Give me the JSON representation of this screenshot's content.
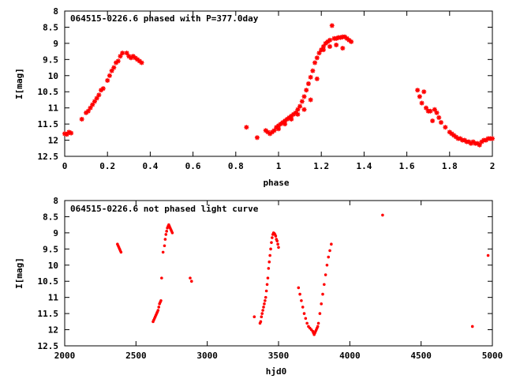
{
  "chart_data": [
    {
      "type": "scatter",
      "title": "064515-0226.6 phased with P=377.0day",
      "xlabel": "phase",
      "ylabel": "I[mag]",
      "xlim": [
        0,
        2
      ],
      "ylim": [
        12.5,
        8
      ],
      "y_inverted": true,
      "xticks": [
        "0",
        "0.2",
        "0.4",
        "0.6",
        "0.8",
        "1",
        "1.2",
        "1.4",
        "1.6",
        "1.8",
        "2"
      ],
      "yticks": [
        "8",
        "8.5",
        "9",
        "9.5",
        "10",
        "10.5",
        "11",
        "11.5",
        "12",
        "12.5"
      ],
      "marker_color": "#ff0000",
      "marker": "star",
      "grid": false,
      "series": [
        {
          "x": [
            0.0,
            0.01,
            0.02,
            0.03,
            0.08,
            0.1,
            0.11,
            0.12,
            0.13,
            0.14,
            0.15,
            0.16,
            0.17,
            0.18,
            0.2,
            0.21,
            0.22,
            0.23,
            0.24,
            0.25,
            0.26,
            0.27,
            0.29,
            0.3,
            0.31,
            0.32,
            0.33,
            0.34,
            0.35,
            0.36,
            0.85,
            0.9,
            0.94,
            0.95,
            0.96,
            0.97,
            0.98,
            0.99,
            1.0,
            1.01,
            1.02,
            1.03,
            1.04,
            1.05,
            1.06,
            1.07,
            1.08,
            1.09,
            1.1,
            1.11,
            1.12,
            1.13,
            1.14,
            1.15,
            1.16,
            1.17,
            1.18,
            1.19,
            1.2,
            1.21,
            1.22,
            1.23,
            1.24,
            1.25,
            1.26,
            1.27,
            1.28,
            1.29,
            1.3,
            1.31,
            1.32,
            1.33,
            1.34,
            1.0,
            1.03,
            1.06,
            1.09,
            1.12,
            1.15,
            1.18,
            1.21,
            1.24,
            1.27,
            1.3,
            1.65,
            1.66,
            1.67,
            1.68,
            1.69,
            1.7,
            1.71,
            1.72,
            1.73,
            1.74,
            1.75,
            1.76,
            1.78,
            1.8,
            1.81,
            1.82,
            1.83,
            1.84,
            1.85,
            1.86,
            1.87,
            1.88,
            1.89,
            1.9,
            1.91,
            1.92,
            1.93,
            1.94,
            1.95,
            1.96,
            1.97,
            1.98,
            1.99,
            2.0
          ],
          "y": [
            11.8,
            11.82,
            11.75,
            11.78,
            11.35,
            11.15,
            11.1,
            11.0,
            10.9,
            10.8,
            10.7,
            10.6,
            10.45,
            10.4,
            10.15,
            10.0,
            9.85,
            9.75,
            9.6,
            9.55,
            9.4,
            9.3,
            9.3,
            9.4,
            9.45,
            9.4,
            9.45,
            9.5,
            9.55,
            9.6,
            11.6,
            11.92,
            11.7,
            11.75,
            11.8,
            11.75,
            11.7,
            11.6,
            11.55,
            11.5,
            11.45,
            11.4,
            11.35,
            11.3,
            11.25,
            11.2,
            11.15,
            11.05,
            10.95,
            10.8,
            10.65,
            10.45,
            10.25,
            10.05,
            9.85,
            9.6,
            9.45,
            9.3,
            9.2,
            9.1,
            9.0,
            8.95,
            8.9,
            8.45,
            8.85,
            8.85,
            8.82,
            8.82,
            8.8,
            8.8,
            8.85,
            8.9,
            8.95,
            11.65,
            11.5,
            11.35,
            11.2,
            11.05,
            10.75,
            10.1,
            9.2,
            9.1,
            9.05,
            9.15,
            10.45,
            10.65,
            10.85,
            10.5,
            11.0,
            11.1,
            11.1,
            11.4,
            11.05,
            11.15,
            11.3,
            11.45,
            11.6,
            11.75,
            11.8,
            11.85,
            11.9,
            11.95,
            11.95,
            12.0,
            12.0,
            12.05,
            12.05,
            12.1,
            12.05,
            12.1,
            12.1,
            12.15,
            12.05,
            12.0,
            12.0,
            11.95,
            11.95,
            11.95
          ]
        }
      ]
    },
    {
      "type": "scatter",
      "title": "064515-0226.6 not phased light curve",
      "xlabel": "hjd0",
      "ylabel": "I[mag]",
      "xlim": [
        2000,
        5000
      ],
      "ylim": [
        12.5,
        8
      ],
      "y_inverted": true,
      "xticks": [
        "2000",
        "2500",
        "3000",
        "3500",
        "4000",
        "4500",
        "5000"
      ],
      "yticks": [
        "8",
        "8.5",
        "9",
        "9.5",
        "10",
        "10.5",
        "11",
        "11.5",
        "12",
        "12.5"
      ],
      "marker_color": "#ff0000",
      "marker": "dot",
      "grid": false,
      "series": [
        {
          "x": [
            2370,
            2375,
            2380,
            2385,
            2390,
            2395,
            2620,
            2625,
            2630,
            2635,
            2640,
            2645,
            2650,
            2655,
            2660,
            2665,
            2670,
            2675,
            2680,
            2690,
            2700,
            2705,
            2710,
            2715,
            2720,
            2725,
            2730,
            2735,
            2740,
            2745,
            2750,
            2755,
            2880,
            2890,
            3330,
            3370,
            3375,
            3380,
            3385,
            3390,
            3395,
            3400,
            3405,
            3410,
            3415,
            3420,
            3425,
            3430,
            3435,
            3440,
            3445,
            3450,
            3455,
            3460,
            3465,
            3470,
            3475,
            3480,
            3485,
            3490,
            3495,
            3500,
            3640,
            3650,
            3660,
            3670,
            3680,
            3690,
            3700,
            3710,
            3720,
            3730,
            3740,
            3745,
            3750,
            3755,
            3760,
            3765,
            3770,
            3775,
            3780,
            3790,
            3800,
            3810,
            3820,
            3830,
            3840,
            3850,
            3860,
            3870,
            4230,
            4860,
            4970
          ],
          "y": [
            9.35,
            9.4,
            9.45,
            9.5,
            9.55,
            9.6,
            11.75,
            11.7,
            11.65,
            11.6,
            11.55,
            11.5,
            11.45,
            11.4,
            11.3,
            11.2,
            11.15,
            11.1,
            10.4,
            9.6,
            9.4,
            9.2,
            9.05,
            8.95,
            8.85,
            8.8,
            8.75,
            8.8,
            8.85,
            8.9,
            8.95,
            9.0,
            10.4,
            10.5,
            11.6,
            11.8,
            11.75,
            11.6,
            11.5,
            11.4,
            11.3,
            11.2,
            11.1,
            11.0,
            10.8,
            10.6,
            10.4,
            10.1,
            9.9,
            9.7,
            9.5,
            9.3,
            9.15,
            9.05,
            9.0,
            9.02,
            9.05,
            9.1,
            9.2,
            9.25,
            9.35,
            9.45,
            10.7,
            10.9,
            11.1,
            11.3,
            11.5,
            11.65,
            11.8,
            11.9,
            11.95,
            12.0,
            12.05,
            12.1,
            12.15,
            12.1,
            12.05,
            12.0,
            11.95,
            11.9,
            11.8,
            11.5,
            11.2,
            10.9,
            10.6,
            10.3,
            10.0,
            9.75,
            9.55,
            9.35,
            8.45,
            11.9,
            9.7
          ]
        }
      ]
    }
  ]
}
